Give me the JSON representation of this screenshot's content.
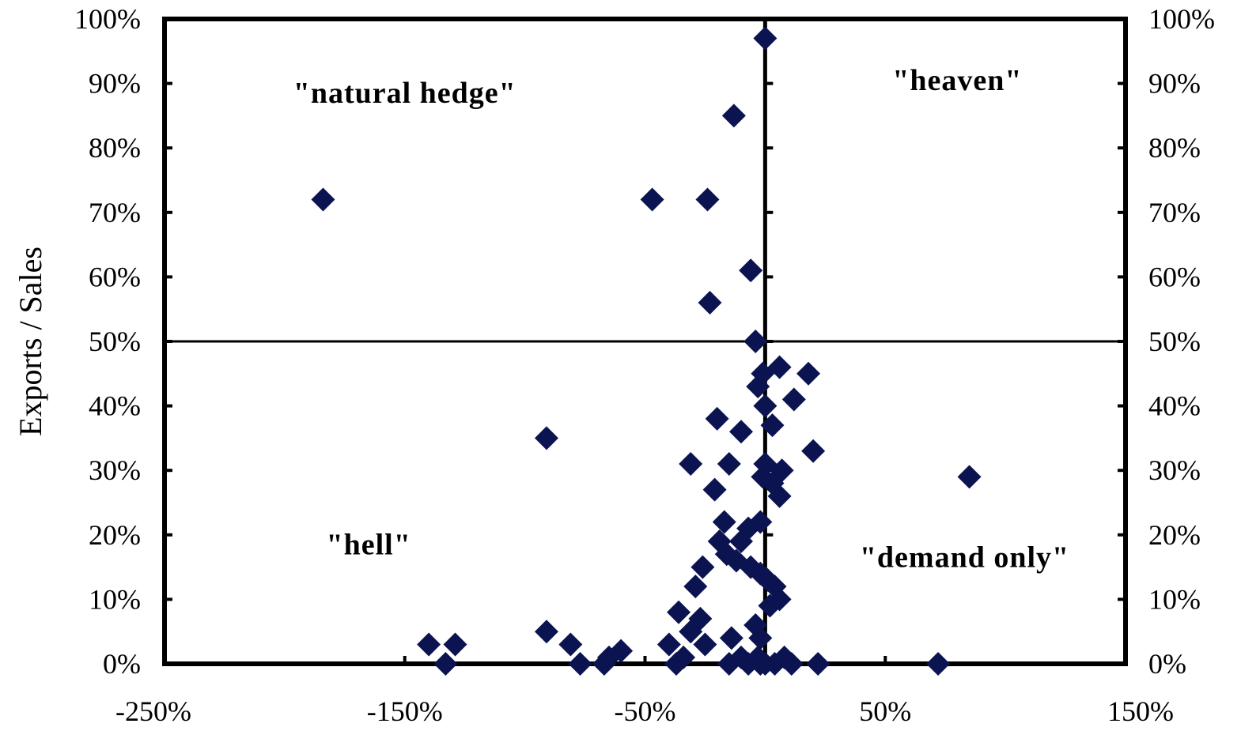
{
  "chart_data": {
    "type": "scatter",
    "ylabel": "Exports / Sales",
    "xlabel": "",
    "xlim": [
      -250,
      150
    ],
    "ylim": [
      0,
      100
    ],
    "x_ticks": [
      -250,
      -150,
      -50,
      50,
      150
    ],
    "y_ticks": [
      0,
      10,
      20,
      30,
      40,
      50,
      60,
      70,
      80,
      90,
      100
    ],
    "x_tick_labels": [
      "-250%",
      "-150%",
      "-50%",
      "50%",
      "150%"
    ],
    "y_tick_labels": [
      "0%",
      "10%",
      "20%",
      "30%",
      "40%",
      "50%",
      "60%",
      "70%",
      "80%",
      "90%",
      "100%"
    ],
    "right_y_tick_labels": [
      "0%",
      "10%",
      "20%",
      "30%",
      "40%",
      "50%",
      "60%",
      "70%",
      "80%",
      "90%",
      "100%"
    ],
    "reference_lines": {
      "x": 0,
      "y": 50
    },
    "grid": false,
    "marker": "diamond",
    "marker_color": "#0b1450",
    "annotations": [
      {
        "text": "\"natural hedge\"",
        "x": -150,
        "y": 87
      },
      {
        "text": "\"heaven\"",
        "x": 80,
        "y": 89
      },
      {
        "text": "\"hell\"",
        "x": -165,
        "y": 17
      },
      {
        "text": "\"demand only\"",
        "x": 83,
        "y": 15
      }
    ],
    "series": [
      {
        "points": [
          [
            0,
            97
          ],
          [
            -13,
            85
          ],
          [
            -184,
            72
          ],
          [
            -47,
            72
          ],
          [
            -24,
            72
          ],
          [
            -6,
            61
          ],
          [
            -23,
            56
          ],
          [
            -4,
            50
          ],
          [
            6,
            46
          ],
          [
            -1,
            45
          ],
          [
            18,
            45
          ],
          [
            -3,
            43
          ],
          [
            12,
            41
          ],
          [
            0,
            40
          ],
          [
            -20,
            38
          ],
          [
            3,
            37
          ],
          [
            -10,
            36
          ],
          [
            -91,
            35
          ],
          [
            20,
            33
          ],
          [
            -31,
            31
          ],
          [
            -15,
            31
          ],
          [
            0,
            31
          ],
          [
            7,
            30
          ],
          [
            -1,
            29
          ],
          [
            85,
            29
          ],
          [
            3,
            28
          ],
          [
            -21,
            27
          ],
          [
            6,
            26
          ],
          [
            -2,
            22
          ],
          [
            -17,
            22
          ],
          [
            -7,
            21
          ],
          [
            -19,
            19
          ],
          [
            -10,
            19
          ],
          [
            -16,
            17
          ],
          [
            -12,
            16
          ],
          [
            -26,
            15
          ],
          [
            -6,
            15
          ],
          [
            -2,
            14
          ],
          [
            1,
            13
          ],
          [
            4,
            12
          ],
          [
            -29,
            12
          ],
          [
            6,
            10
          ],
          [
            2,
            9
          ],
          [
            -36,
            8
          ],
          [
            -27,
            7
          ],
          [
            -4,
            6
          ],
          [
            -91,
            5
          ],
          [
            -31,
            5
          ],
          [
            -2,
            4
          ],
          [
            -14,
            4
          ],
          [
            -140,
            3
          ],
          [
            -129,
            3
          ],
          [
            -81,
            3
          ],
          [
            -60,
            2
          ],
          [
            -40,
            3
          ],
          [
            -25,
            3
          ],
          [
            -65,
            1
          ],
          [
            -10,
            1
          ],
          [
            -3,
            1
          ],
          [
            8,
            1
          ],
          [
            -34,
            1
          ],
          [
            -133,
            0
          ],
          [
            -77,
            0
          ],
          [
            -67,
            0
          ],
          [
            -37,
            0
          ],
          [
            -15,
            0
          ],
          [
            -7,
            0
          ],
          [
            -2,
            0
          ],
          [
            0,
            0
          ],
          [
            4,
            0
          ],
          [
            11,
            0
          ],
          [
            22,
            0
          ],
          [
            72,
            0
          ]
        ]
      }
    ]
  }
}
